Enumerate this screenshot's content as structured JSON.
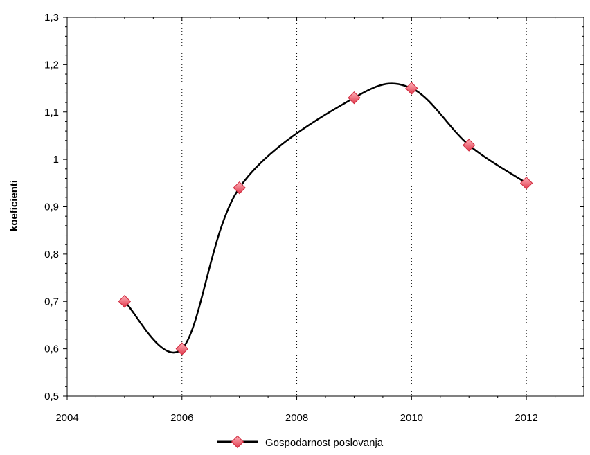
{
  "chart_data": {
    "type": "line",
    "title": "",
    "xlabel": "",
    "ylabel": "koeficienti",
    "xlim": [
      2004,
      2013
    ],
    "ylim": [
      0.5,
      1.3
    ],
    "x_ticks": [
      2004,
      2006,
      2008,
      2010,
      2012
    ],
    "x_tick_labels": [
      "2004",
      "2006",
      "2008",
      "2010",
      "2012"
    ],
    "y_ticks": [
      0.5,
      0.6,
      0.7,
      0.8,
      0.9,
      1.0,
      1.1,
      1.2,
      1.3
    ],
    "y_tick_labels": [
      "0,5",
      "0,6",
      "0,7",
      "0,8",
      "0,9",
      "1",
      "1,1",
      "1,2",
      "1,3"
    ],
    "vertical_grid": [
      2006,
      2008,
      2010,
      2012
    ],
    "smooth": true,
    "legend_position": "bottom",
    "series": [
      {
        "name": "Gospodarnost poslovanja",
        "x": [
          2005,
          2006,
          2007,
          2009,
          2010,
          2011,
          2012
        ],
        "values": [
          0.7,
          0.6,
          0.94,
          1.13,
          1.15,
          1.03,
          0.95
        ],
        "line_color": "#000000",
        "marker_color": "#f06a78",
        "marker": "diamond"
      }
    ]
  }
}
